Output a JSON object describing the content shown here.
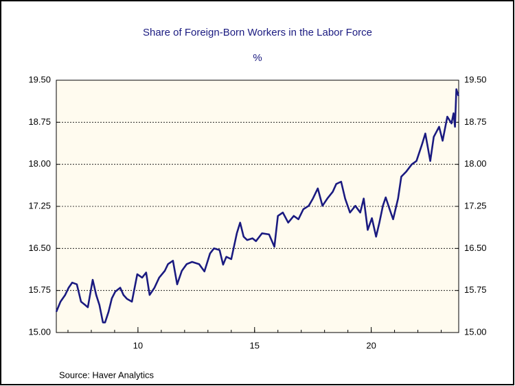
{
  "chart_data": {
    "type": "line",
    "title": "Share of Foreign-Born Workers in the Labor Force",
    "subtitle": "%",
    "source": "Source:  Haver Analytics",
    "xlim": [
      6.5,
      23.75
    ],
    "xticks": [
      10,
      15,
      20
    ],
    "ylim": [
      15,
      19.5
    ],
    "yticks": [
      {
        "value": 15,
        "label": "15.00"
      },
      {
        "value": 15.75,
        "label": "15.75"
      },
      {
        "value": 16.5,
        "label": "16.50"
      },
      {
        "value": 17.25,
        "label": "17.25"
      },
      {
        "value": 18,
        "label": "18.00"
      },
      {
        "value": 18.75,
        "label": "18.75"
      },
      {
        "value": 19.5,
        "label": "19.50"
      }
    ],
    "grid": true,
    "background": "#fffbef",
    "series": [
      {
        "color": "#1a1a80",
        "x": [
          6.5,
          6.68,
          6.88,
          7.03,
          7.18,
          7.38,
          7.56,
          7.74,
          7.85,
          8.06,
          8.21,
          8.35,
          8.5,
          8.59,
          8.74,
          8.88,
          9.03,
          9.24,
          9.38,
          9.53,
          9.74,
          9.97,
          10.18,
          10.35,
          10.5,
          10.71,
          10.91,
          11.15,
          11.29,
          11.5,
          11.68,
          11.88,
          12.09,
          12.32,
          12.62,
          12.85,
          13.09,
          13.26,
          13.5,
          13.65,
          13.79,
          14.0,
          14.24,
          14.38,
          14.53,
          14.68,
          14.91,
          15.06,
          15.32,
          15.62,
          15.85,
          16.0,
          16.21,
          16.44,
          16.68,
          16.88,
          17.09,
          17.32,
          17.5,
          17.71,
          17.91,
          18.12,
          18.35,
          18.5,
          18.71,
          18.88,
          19.09,
          19.32,
          19.53,
          19.68,
          19.85,
          20.03,
          20.21,
          20.35,
          20.5,
          20.62,
          20.79,
          20.94,
          21.15,
          21.29,
          21.5,
          21.74,
          21.94,
          22.18,
          22.32,
          22.53,
          22.68,
          22.91,
          23.06,
          23.26,
          23.44,
          23.53,
          23.59,
          23.65,
          23.74
        ],
        "values": [
          15.37,
          15.55,
          15.67,
          15.8,
          15.89,
          15.86,
          15.55,
          15.49,
          15.45,
          15.94,
          15.67,
          15.49,
          15.18,
          15.18,
          15.37,
          15.61,
          15.73,
          15.8,
          15.67,
          15.6,
          15.55,
          16.04,
          15.98,
          16.07,
          15.67,
          15.8,
          15.98,
          16.1,
          16.22,
          16.28,
          15.86,
          16.1,
          16.22,
          16.26,
          16.22,
          16.09,
          16.41,
          16.5,
          16.47,
          16.21,
          16.35,
          16.31,
          16.77,
          16.96,
          16.71,
          16.65,
          16.68,
          16.63,
          16.77,
          16.75,
          16.53,
          17.08,
          17.14,
          16.96,
          17.08,
          17.02,
          17.2,
          17.26,
          17.39,
          17.57,
          17.26,
          17.39,
          17.51,
          17.65,
          17.69,
          17.39,
          17.14,
          17.26,
          17.14,
          17.39,
          16.83,
          17.04,
          16.71,
          16.96,
          17.26,
          17.41,
          17.2,
          17.02,
          17.39,
          17.78,
          17.87,
          18.0,
          18.06,
          18.36,
          18.55,
          18.06,
          18.49,
          18.67,
          18.42,
          18.85,
          18.73,
          18.91,
          18.67,
          19.34,
          19.22
        ]
      }
    ]
  }
}
